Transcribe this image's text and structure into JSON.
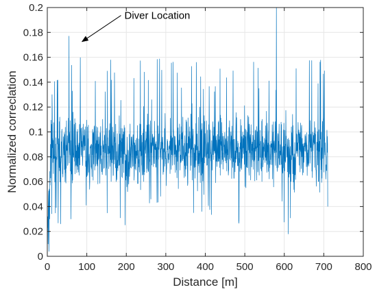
{
  "chart_data": {
    "type": "line",
    "title": "",
    "xlabel": "Distance [m]",
    "ylabel": "Normalized correclation",
    "xlim": [
      0,
      800
    ],
    "ylim": [
      0,
      0.2
    ],
    "x_ticks": [
      "0",
      "100",
      "200",
      "300",
      "400",
      "500",
      "600",
      "700",
      "800"
    ],
    "y_ticks": [
      "0",
      "0.02",
      "0.04",
      "0.06",
      "0.08",
      "0.1",
      "0.12",
      "0.14",
      "0.16",
      "0.18",
      "0.2"
    ],
    "grid": true,
    "legend": "none",
    "series": [
      {
        "color": "#0072BD",
        "x_range": [
          0,
          710
        ],
        "points_count": 1420,
        "mean": 0.085,
        "typical_band": [
          0.06,
          0.11
        ],
        "notable_points": [
          {
            "x": 0,
            "y": 0.06
          },
          {
            "x": 2,
            "y": 0.01
          },
          {
            "x": 4,
            "y": 0.004
          },
          {
            "x": 6,
            "y": 0.03
          },
          {
            "x": 8,
            "y": 0.09
          },
          {
            "x": 12,
            "y": 0.13
          },
          {
            "x": 55,
            "y": 0.177
          },
          {
            "x": 60,
            "y": 0.03
          },
          {
            "x": 580,
            "y": 0.2
          },
          {
            "x": 610,
            "y": 0.018
          },
          {
            "x": 710,
            "y": 0.04
          }
        ]
      }
    ],
    "annotations": [
      {
        "text": "Diver Location",
        "x": 55,
        "y": 0.177,
        "arrow_from_x": 105,
        "arrow_from_y": 0.187
      }
    ]
  }
}
